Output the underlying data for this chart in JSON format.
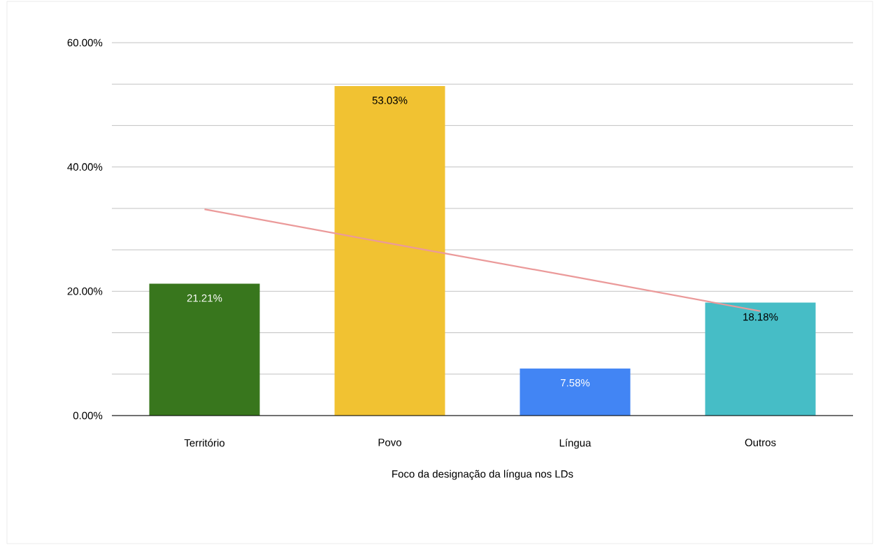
{
  "chart_data": {
    "type": "bar",
    "xlabel": "Foco da designação da língua nos LDs",
    "categories": [
      "Território",
      "Povo",
      "Língua",
      "Outros"
    ],
    "series": [
      {
        "values": [
          21.21,
          53.03,
          7.58,
          18.18
        ],
        "colors": [
          "#38761d",
          "#f1c232",
          "#4285f4",
          "#46bdc6"
        ],
        "value_labels": [
          "21.21%",
          "53.03%",
          "7.58%",
          "18.18%"
        ]
      },
      {
        "type": "line",
        "values": [
          33.2,
          27.7,
          22.3,
          16.8
        ],
        "color": "#eb9a9a"
      }
    ],
    "ylim": [
      0,
      60
    ],
    "yticks": [
      {
        "value": 0,
        "label": "0.00%"
      },
      {
        "value": 6.67,
        "label": null
      },
      {
        "value": 13.33,
        "label": null
      },
      {
        "value": 20,
        "label": "20.00%"
      },
      {
        "value": 26.67,
        "label": null
      },
      {
        "value": 33.33,
        "label": null
      },
      {
        "value": 40,
        "label": "40.00%"
      },
      {
        "value": 46.67,
        "label": null
      },
      {
        "value": 53.33,
        "label": null
      },
      {
        "value": 60,
        "label": "60.00%"
      }
    ],
    "grid": "y"
  }
}
